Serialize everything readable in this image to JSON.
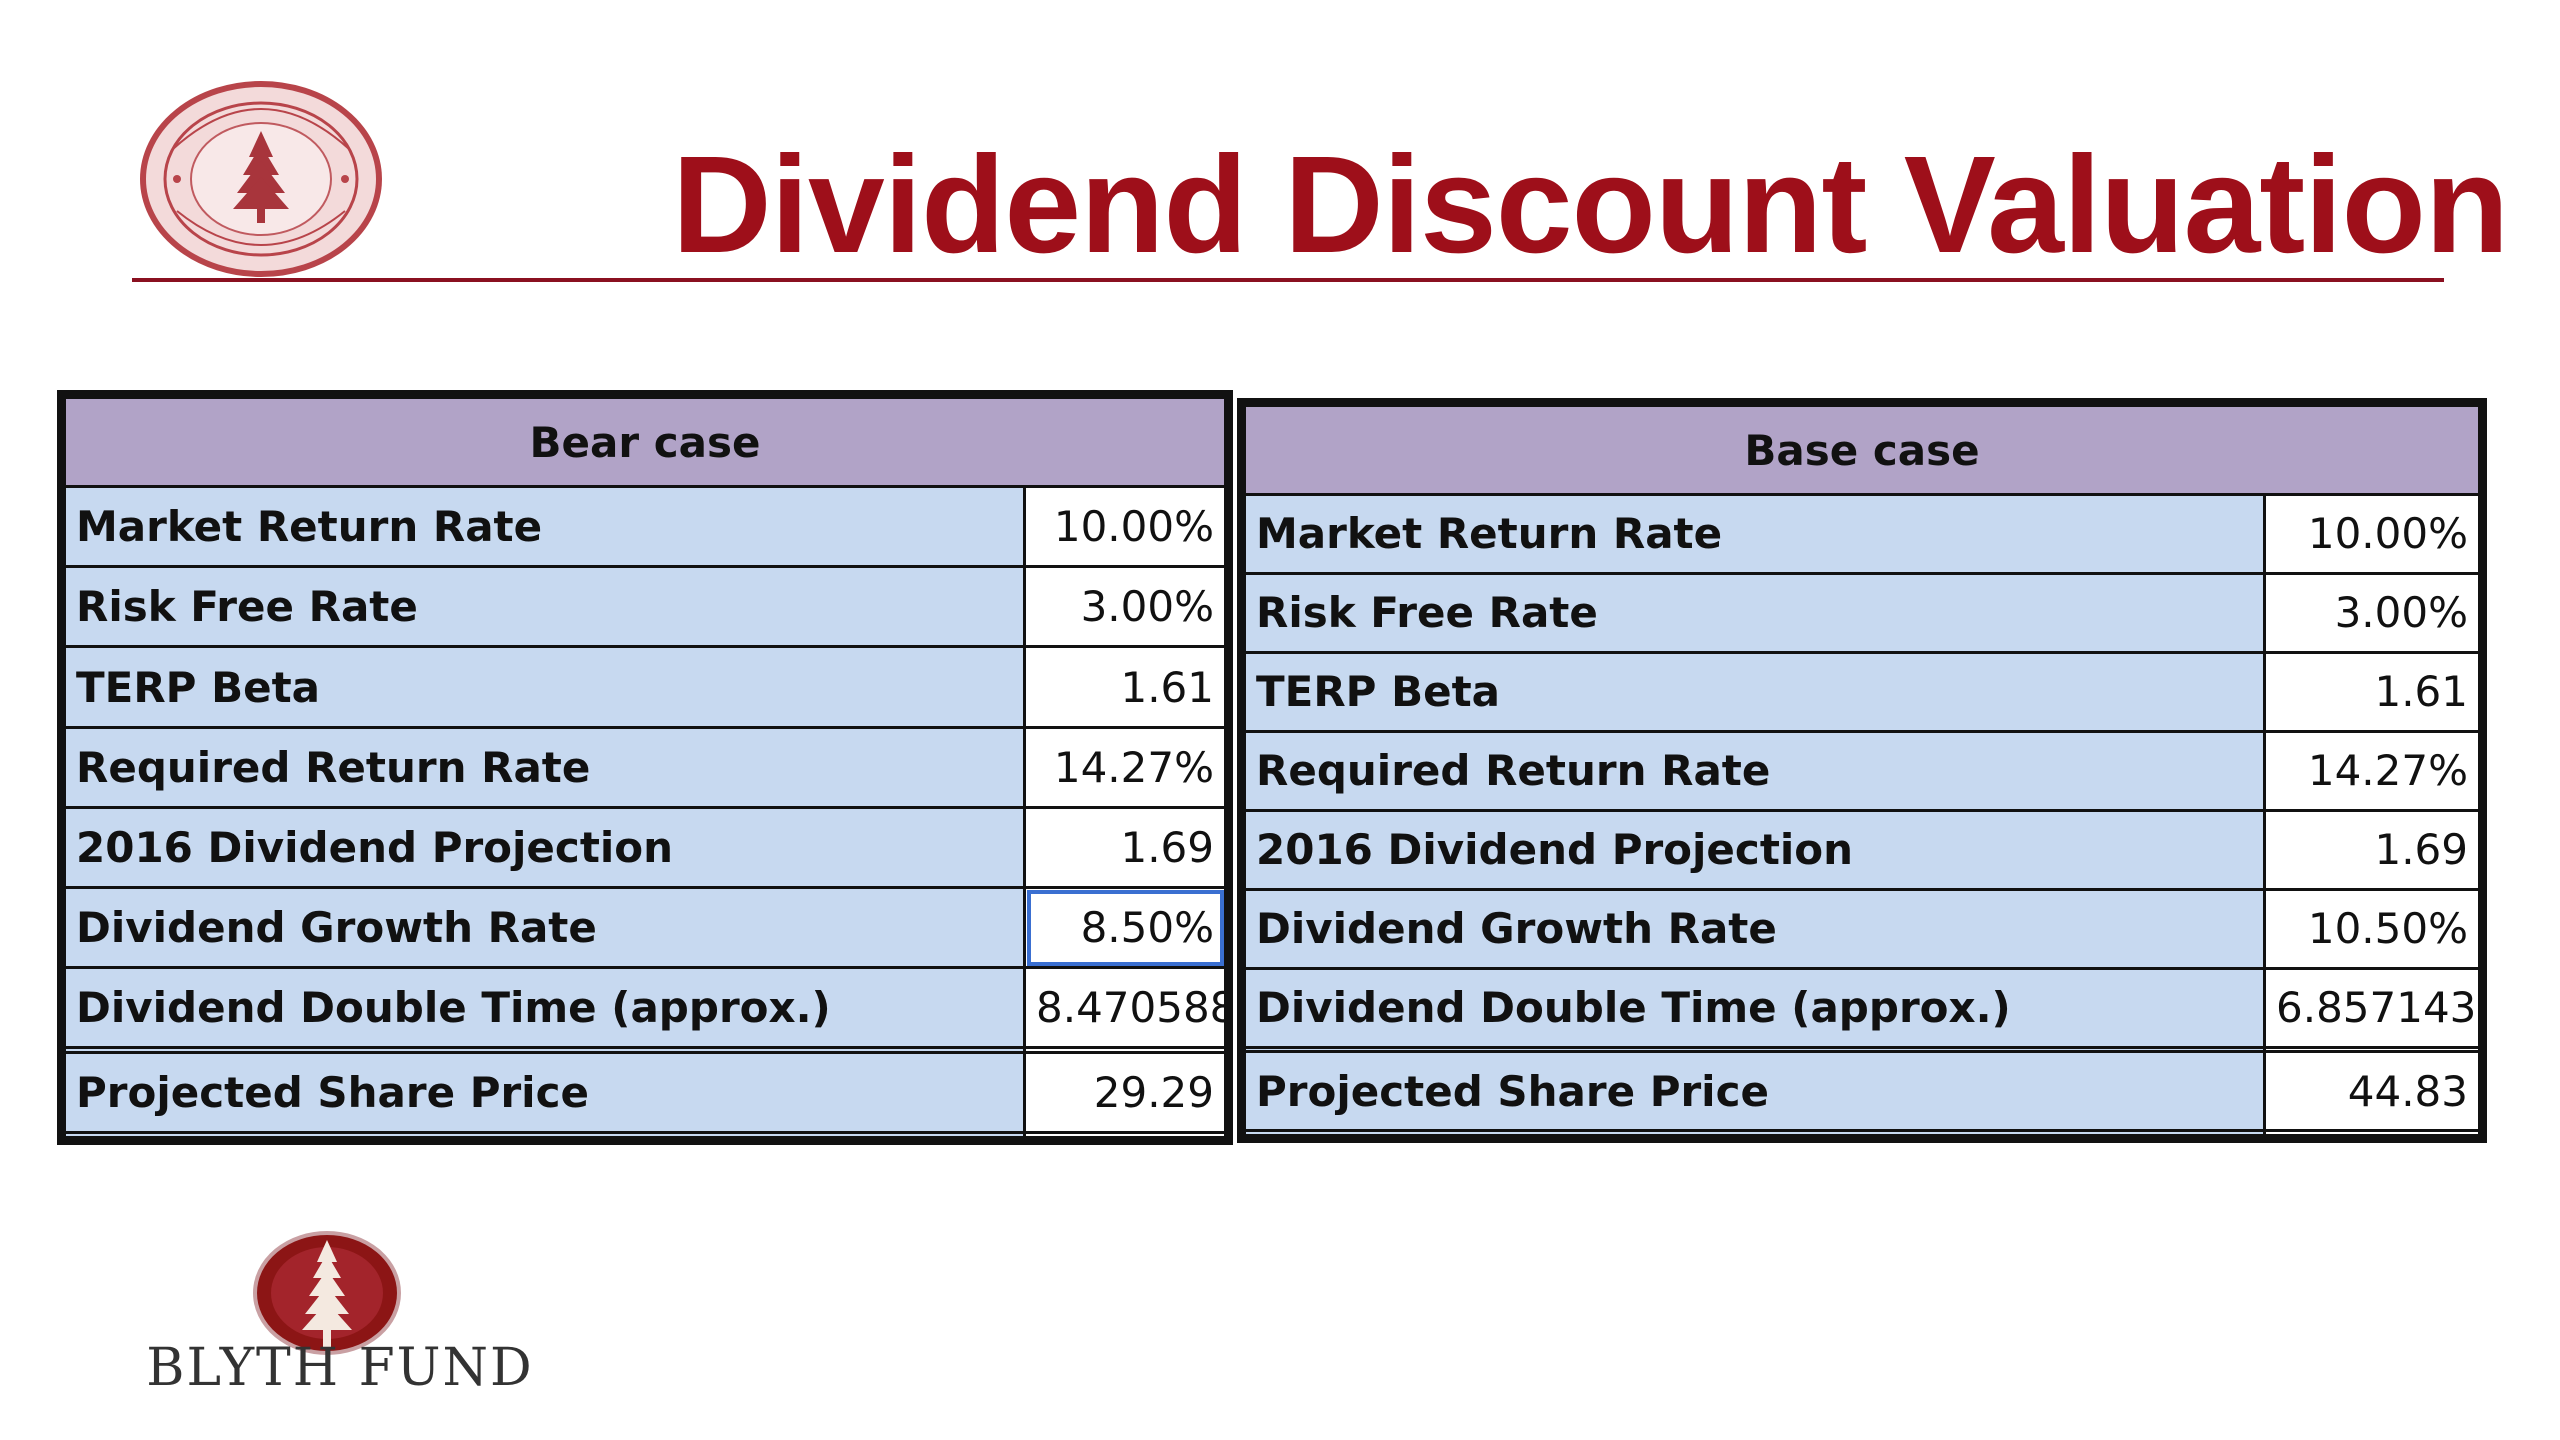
{
  "title": "Dividend Discount Valuation",
  "colors": {
    "title": "#9e0f1a",
    "header_fill": "#b1a3c7",
    "label_fill": "#c7d9f0",
    "brand": "#8c1515"
  },
  "logos": {
    "top_left": "university-seal",
    "bottom_left_icon": "redwood-tree-emblem",
    "bottom_left_text": "BLYTH FUND"
  },
  "bear": {
    "header": "Bear case",
    "rows": [
      {
        "label": "Market Return Rate",
        "value": "10.00%"
      },
      {
        "label": "Risk Free Rate",
        "value": "3.00%"
      },
      {
        "label": "TERP Beta",
        "value": "1.61"
      },
      {
        "label": "Required Return Rate",
        "value": "14.27%"
      },
      {
        "label": "2016 Dividend Projection",
        "value": "1.69"
      },
      {
        "label": "Dividend Growth Rate",
        "value": "8.50%"
      },
      {
        "label": "Dividend Double Time (approx.)",
        "value": "8.470588"
      },
      {
        "label": "",
        "value": ""
      },
      {
        "label": "Projected Share Price",
        "value": "29.29"
      },
      {
        "label": "",
        "value": ""
      }
    ]
  },
  "base": {
    "header": "Base case",
    "rows": [
      {
        "label": "Market Return Rate",
        "value": "10.00%"
      },
      {
        "label": "Risk Free Rate",
        "value": "3.00%"
      },
      {
        "label": "TERP Beta",
        "value": "1.61"
      },
      {
        "label": "Required Return Rate",
        "value": "14.27%"
      },
      {
        "label": "2016 Dividend Projection",
        "value": "1.69"
      },
      {
        "label": "Dividend Growth Rate",
        "value": "10.50%"
      },
      {
        "label": "Dividend Double Time (approx.)",
        "value": "6.857143"
      },
      {
        "label": "",
        "value": ""
      },
      {
        "label": "Projected Share Price",
        "value": "44.83"
      },
      {
        "label": "",
        "value": ""
      }
    ]
  }
}
